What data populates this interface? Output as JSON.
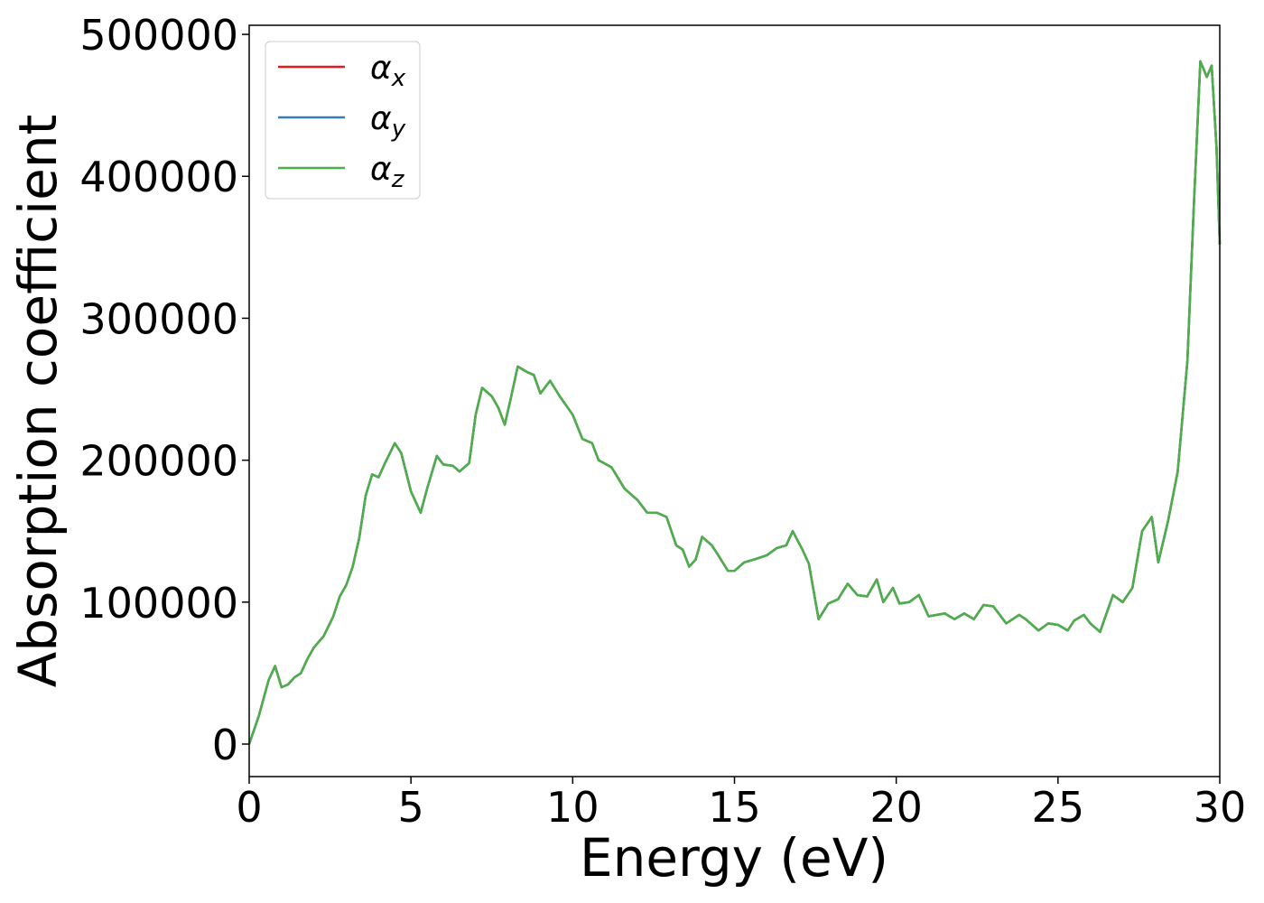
{
  "chart_data": {
    "type": "line",
    "x_label": "Energy (eV)",
    "y_label": "Absorption coefficient",
    "x": [
      0,
      0.3,
      0.6,
      0.8,
      1.0,
      1.2,
      1.4,
      1.6,
      1.8,
      2.0,
      2.3,
      2.6,
      2.8,
      3.0,
      3.2,
      3.4,
      3.6,
      3.8,
      4.0,
      4.2,
      4.5,
      4.7,
      5.0,
      5.3,
      5.5,
      5.8,
      6.0,
      6.3,
      6.5,
      6.8,
      7.0,
      7.2,
      7.5,
      7.7,
      7.9,
      8.1,
      8.3,
      8.6,
      8.8,
      9.0,
      9.3,
      9.6,
      10.0,
      10.3,
      10.6,
      10.8,
      11.2,
      11.6,
      12.0,
      12.3,
      12.6,
      12.9,
      13.2,
      13.4,
      13.6,
      13.8,
      14.0,
      14.3,
      14.5,
      14.8,
      15.0,
      15.3,
      15.6,
      16.0,
      16.3,
      16.6,
      16.8,
      17.1,
      17.3,
      17.6,
      17.9,
      18.2,
      18.5,
      18.8,
      19.1,
      19.4,
      19.6,
      19.9,
      20.1,
      20.4,
      20.7,
      21.0,
      21.5,
      21.8,
      22.1,
      22.4,
      22.7,
      23.0,
      23.4,
      23.8,
      24.0,
      24.4,
      24.7,
      25.0,
      25.3,
      25.5,
      25.8,
      26.0,
      26.3,
      26.7,
      27.0,
      27.3,
      27.6,
      27.9,
      28.1,
      28.4,
      28.7,
      29.0,
      29.2,
      29.4,
      29.6,
      29.75,
      29.9,
      30.0
    ],
    "series": [
      {
        "name": "αx",
        "color": "#e41a1c",
        "values": [
          0,
          20000,
          45000,
          55000,
          40000,
          42000,
          47000,
          50000,
          60000,
          68000,
          76000,
          90000,
          104000,
          112000,
          125000,
          145000,
          175000,
          190000,
          188000,
          198000,
          212000,
          205000,
          178000,
          163000,
          180000,
          203000,
          197000,
          196000,
          192000,
          198000,
          232000,
          251000,
          245000,
          237000,
          225000,
          245000,
          266000,
          262000,
          260000,
          247000,
          256000,
          245000,
          232000,
          215000,
          212000,
          200000,
          195000,
          180000,
          172000,
          163000,
          163000,
          160000,
          140000,
          137000,
          125000,
          130000,
          146000,
          140000,
          133000,
          122000,
          122000,
          128000,
          130000,
          133000,
          138000,
          140000,
          150000,
          137000,
          127000,
          88000,
          99000,
          102000,
          113000,
          105000,
          104000,
          116000,
          100000,
          110000,
          99000,
          100000,
          105000,
          90000,
          92000,
          88000,
          92000,
          88000,
          98000,
          97000,
          85000,
          91000,
          88000,
          80000,
          85000,
          84000,
          80000,
          87000,
          91000,
          85000,
          79000,
          105000,
          100000,
          110000,
          150000,
          160000,
          128000,
          157000,
          192000,
          270000,
          380000,
          481000,
          470000,
          478000,
          420000,
          352000
        ]
      },
      {
        "name": "αy",
        "color": "#377eb8",
        "values": [
          0,
          20000,
          45000,
          55000,
          40000,
          42000,
          47000,
          50000,
          60000,
          68000,
          76000,
          90000,
          104000,
          112000,
          125000,
          145000,
          175000,
          190000,
          188000,
          198000,
          212000,
          205000,
          178000,
          163000,
          180000,
          203000,
          197000,
          196000,
          192000,
          198000,
          232000,
          251000,
          245000,
          237000,
          225000,
          245000,
          266000,
          262000,
          260000,
          247000,
          256000,
          245000,
          232000,
          215000,
          212000,
          200000,
          195000,
          180000,
          172000,
          163000,
          163000,
          160000,
          140000,
          137000,
          125000,
          130000,
          146000,
          140000,
          133000,
          122000,
          122000,
          128000,
          130000,
          133000,
          138000,
          140000,
          150000,
          137000,
          127000,
          88000,
          99000,
          102000,
          113000,
          105000,
          104000,
          116000,
          100000,
          110000,
          99000,
          100000,
          105000,
          90000,
          92000,
          88000,
          92000,
          88000,
          98000,
          97000,
          85000,
          91000,
          88000,
          80000,
          85000,
          84000,
          80000,
          87000,
          91000,
          85000,
          79000,
          105000,
          100000,
          110000,
          150000,
          160000,
          128000,
          157000,
          192000,
          270000,
          380000,
          481000,
          470000,
          478000,
          420000,
          352000
        ]
      },
      {
        "name": "αz",
        "color": "#4daf4a",
        "values": [
          0,
          20000,
          45000,
          55000,
          40000,
          42000,
          47000,
          50000,
          60000,
          68000,
          76000,
          90000,
          104000,
          112000,
          125000,
          145000,
          175000,
          190000,
          188000,
          198000,
          212000,
          205000,
          178000,
          163000,
          180000,
          203000,
          197000,
          196000,
          192000,
          198000,
          232000,
          251000,
          245000,
          237000,
          225000,
          245000,
          266000,
          262000,
          260000,
          247000,
          256000,
          245000,
          232000,
          215000,
          212000,
          200000,
          195000,
          180000,
          172000,
          163000,
          163000,
          160000,
          140000,
          137000,
          125000,
          130000,
          146000,
          140000,
          133000,
          122000,
          122000,
          128000,
          130000,
          133000,
          138000,
          140000,
          150000,
          137000,
          127000,
          88000,
          99000,
          102000,
          113000,
          105000,
          104000,
          116000,
          100000,
          110000,
          99000,
          100000,
          105000,
          90000,
          92000,
          88000,
          92000,
          88000,
          98000,
          97000,
          85000,
          91000,
          88000,
          80000,
          85000,
          84000,
          80000,
          87000,
          91000,
          85000,
          79000,
          105000,
          100000,
          110000,
          150000,
          160000,
          128000,
          157000,
          192000,
          270000,
          380000,
          481000,
          470000,
          478000,
          420000,
          352000
        ]
      }
    ],
    "xlim": [
      0,
      30
    ],
    "xticks": [
      0,
      5,
      10,
      15,
      20,
      25,
      30
    ],
    "ylim": [
      -22900,
      506400
    ],
    "yticks": [
      0,
      100000,
      200000,
      300000,
      400000,
      500000
    ],
    "grid": false,
    "legend": "upper left"
  }
}
